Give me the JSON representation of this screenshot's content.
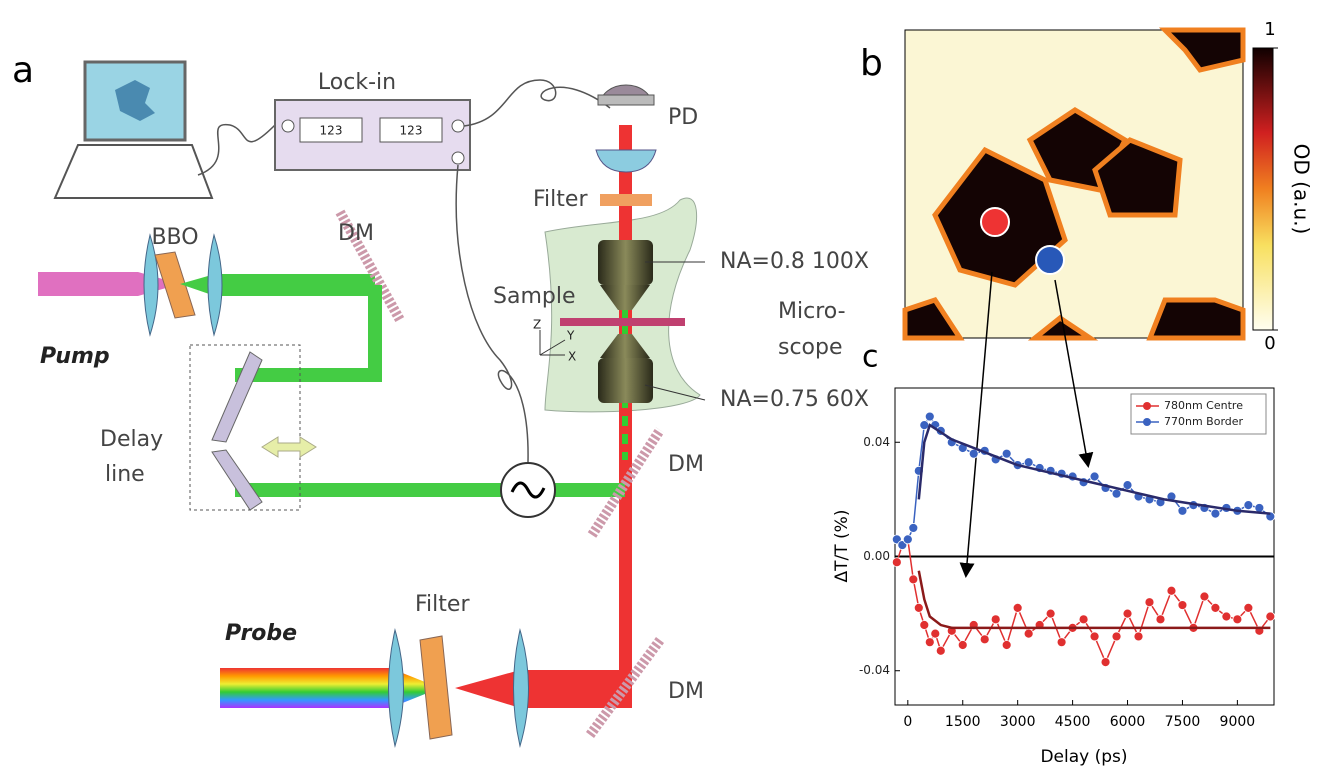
{
  "panel_labels": [
    "a",
    "b",
    "c"
  ],
  "diagram": {
    "labels": [
      "Lock-in",
      "123",
      "123",
      "PD",
      "Filter",
      "BBO",
      "DM",
      "NA=0.8 100X",
      "Sample",
      "Micro-",
      "scope",
      "Pump",
      "Delay",
      "line",
      "NA=0.75 60X",
      "DM",
      "Filter",
      "Probe",
      "DM",
      "Z",
      "Y",
      "X"
    ]
  },
  "heatmap": {
    "colorbar_label": "OD (a.u.)",
    "colorbar_ticks": [
      0,
      1
    ],
    "colorbar_lim": [
      0,
      1
    ]
  },
  "chart_data": {
    "type": "line",
    "x_label": "Delay (ps)",
    "y_label": "ΔT/T (%)",
    "x": [
      -300,
      -150,
      0,
      150,
      300,
      450,
      600,
      750,
      900,
      1200,
      1500,
      1800,
      2100,
      2400,
      2700,
      3000,
      3300,
      3600,
      3900,
      4200,
      4500,
      4800,
      5100,
      5400,
      5700,
      6000,
      6300,
      6600,
      6900,
      7200,
      7500,
      7800,
      8100,
      8400,
      8700,
      9000,
      9300,
      9600,
      9900
    ],
    "series": [
      {
        "name": "780nm Centre",
        "color": "#e03030",
        "values": [
          -0.002,
          0.004,
          0.006,
          -0.008,
          -0.018,
          -0.024,
          -0.03,
          -0.027,
          -0.033,
          -0.026,
          -0.031,
          -0.024,
          -0.029,
          -0.022,
          -0.031,
          -0.018,
          -0.027,
          -0.024,
          -0.02,
          -0.03,
          -0.025,
          -0.022,
          -0.028,
          -0.037,
          -0.028,
          -0.02,
          -0.028,
          -0.016,
          -0.022,
          -0.012,
          -0.017,
          -0.025,
          -0.014,
          -0.018,
          -0.021,
          -0.022,
          -0.018,
          -0.026,
          -0.021
        ]
      },
      {
        "name": "770nm Border",
        "color": "#3a62c0",
        "values": [
          0.006,
          0.004,
          0.006,
          0.01,
          0.03,
          0.046,
          0.049,
          0.046,
          0.044,
          0.04,
          0.038,
          0.036,
          0.037,
          0.034,
          0.036,
          0.032,
          0.033,
          0.031,
          0.03,
          0.029,
          0.028,
          0.026,
          0.028,
          0.024,
          0.022,
          0.025,
          0.021,
          0.02,
          0.019,
          0.021,
          0.016,
          0.018,
          0.017,
          0.015,
          0.017,
          0.016,
          0.018,
          0.017,
          0.014
        ]
      }
    ],
    "fits": [
      {
        "color": "#8b1a1a",
        "x": [
          300,
          450,
          600,
          900,
          1200,
          2000,
          9900
        ],
        "values": [
          -0.005,
          -0.015,
          -0.021,
          -0.024,
          -0.025,
          -0.025,
          -0.025
        ]
      },
      {
        "color": "#2a2a6a",
        "x": [
          300,
          450,
          600,
          1200,
          2000,
          3000,
          4000,
          5000,
          6000,
          7000,
          8000,
          9000,
          9900
        ],
        "values": [
          0.02,
          0.04,
          0.046,
          0.041,
          0.037,
          0.032,
          0.029,
          0.026,
          0.023,
          0.02,
          0.018,
          0.016,
          0.015
        ]
      }
    ],
    "xlim": [
      -350,
      10000
    ],
    "ylim": [
      -0.052,
      0.059
    ],
    "xticks": [
      0,
      1500,
      3000,
      4500,
      6000,
      7500,
      9000
    ],
    "yticks": [
      -0.04,
      {
        "value": 0,
        "label": "0.00"
      },
      0.04
    ],
    "zero_line": true,
    "legend": "upper right"
  }
}
